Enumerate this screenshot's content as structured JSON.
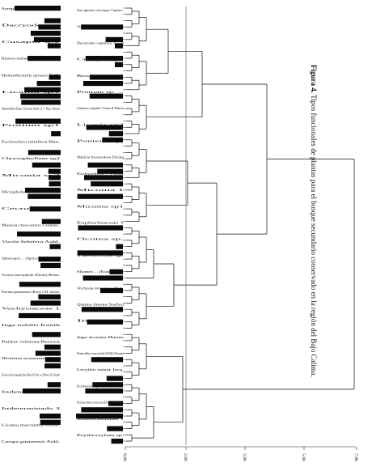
{
  "figure": {
    "label": "Figura 4.",
    "caption": "Tipos funcionales de plantas para el bosque secundario conservado en la región del Bajo Calima."
  },
  "axis": {
    "ticks": [
      "0,00",
      "2,00",
      "3,99",
      "5,99",
      "7,98"
    ]
  },
  "left_labels": [
    "Symphonia globulifera L.F.",
    "Dacryodes sp.",
    "Cusapia sp2",
    "Rinorea melanoides A. H. Gentry",
    "Helianthostylis sprucei Baill.",
    "Licania sp1",
    "Huberodendron Suárez, Chocoana, Standl., Q. C. Berg y Hausom",
    "Protium sp1",
    "Eschweilera miniflora Mart.",
    "Chrysophyllum sp2",
    "Miconia sp2",
    "Micropholis falcata (Pierre) ...",
    "Cecropia sp.",
    "Matisia chocoensis Cuatrec.",
    "Virola Sebifera Aubl.",
    "Sphaeropsis ... (Spruce ex H.) Benth.",
    "Ocotea macrophylla (Ducke) Herms.",
    "Protium panamense (Rose) I.M. Johnst.",
    "Vochysiaceae 1",
    "Inga nobilis Kunth",
    "Parkia velutina Benoist",
    "Heisteria acuminata Engl.",
    "Eschweilera integrifolia (Ruiz & Pav. ex Miers) R. Knuth",
    "Indeterminado 2",
    "Indeterminado 3",
    "Licania macrantha Benth.",
    "Carapa guianensis Aubl."
  ],
  "right_labels": [
    "Sacoglottis ovicarpa Cuatrec.",
    "Chrysochlamys membranacea Planch. & Triana",
    "Dacryodes cupularis Swart",
    "Cusapia sp1",
    "Brosimum utile ...",
    "Protium sp. ...",
    "Guatteria cargadero Triana & Planch.",
    "Licania sp2",
    "Pouteria sp.",
    "Matisia bracteolosa Ducke",
    "Eschweilera ... Pittier",
    "Miconia 1",
    "Miconia sp1",
    "Euphorbiaceae 1",
    "Ocotea sp.",
    "Theobroma sp.",
    "Sloanea ... (Kunth) Sw.",
    "Vochysia ferruginea Mart.",
    "Qualea lineata Stafleu",
    "Inga sp1",
    "Inga acreana Harms",
    "Pentaclethra macroloba (Willd.) Kuntze",
    "Lecythis minor Jacq.",
    "Eschweilera panamensis Pittier",
    "Eschweilera coriacea (DC.) S.A. Mori",
    "Indeterminado 1",
    "Erythroxylum sp."
  ]
}
